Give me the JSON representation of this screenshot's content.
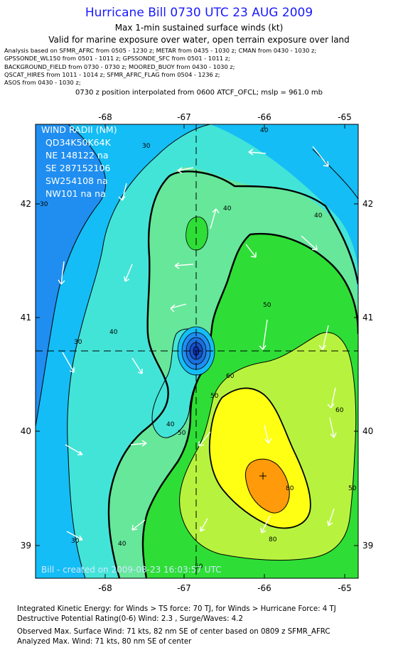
{
  "header": {
    "title": "Hurricane Bill 0730 UTC 23 AUG 2009",
    "subtitle": "Max 1-min sustained surface winds (kt)",
    "valid_note": "Valid for marine exposure over water, open terrain exposure over land",
    "analysis_lines": [
      "Analysis based on   SFMR_AFRC from 0505 - 1230 z;  METAR from 0435 - 1030 z;  CMAN from 0430 - 1030 z;",
      "GPSSONDE_WL150 from 0501 - 1011 z;  GPSSONDE_SFC from 0501 - 1011 z;",
      "BACKGROUND_FIELD from 0730 - 0730 z;  MOORED_BUOY from 0430 - 1030 z;",
      "QSCAT_HIRES from 1011 - 1014 z;  SFMR_AFRC_FLAG from 0504 - 1236 z;",
      "ASOS from 0430 - 1030 z;"
    ],
    "position_note": "0730 z position interpolated from 0600 ATCF_OFCL; mslp = 961.0 mb"
  },
  "map": {
    "lon_ticks": [
      "-68",
      "-67",
      "-66",
      "-65"
    ],
    "lat_ticks": [
      "42",
      "41",
      "40",
      "39"
    ],
    "wind_radii": {
      "title": "WIND RADII (NM)",
      "header": "QD34K50K64K",
      "rows": [
        "NE 148122  na",
        "SE 287152106",
        "SW254108  na",
        "NW101  na  na"
      ]
    },
    "contour_labels": [
      "30",
      "30",
      "30",
      "30",
      "40",
      "40",
      "40",
      "40",
      "40",
      "40",
      "50",
      "50",
      "50",
      "50",
      "50",
      "60",
      "60",
      "80",
      "80"
    ],
    "credit": "Bill  -  created on 2009-08-23 16:03:57 UTC",
    "colors": {
      "c20": "#1f8ef0",
      "c30": "#14bdf5",
      "c40": "#43e4d8",
      "c45": "#66e79a",
      "c50": "#2ede36",
      "c60": "#b7f33e",
      "c70": "#ffff14",
      "c80": "#ff9a0a"
    }
  },
  "footer": {
    "ike": "Integrated Kinetic Energy:  for Winds > TS force: 70 TJ,  for Winds > Hurricane Force: 4 TJ",
    "dpr": "Destructive Potential Rating(0-6)   Wind: 2.3 , Surge/Waves: 4.2",
    "observed": "Observed Max. Surface Wind: 71 kts, 82 nm SE of center based on 0809 z SFMR_AFRC",
    "analyzed": "Analyzed Max. Wind: 71 kts, 80 nm SE of center"
  }
}
